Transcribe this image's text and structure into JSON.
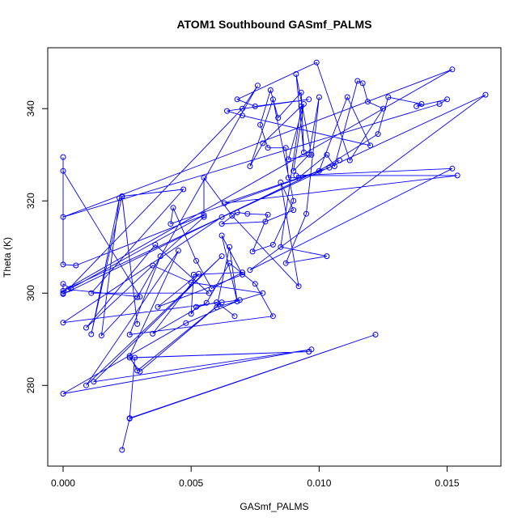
{
  "chart_data": {
    "type": "line",
    "title": "ATOM1 Southbound GASmf_PALMS",
    "xlabel": "GASmf_PALMS",
    "ylabel": "Theta (K)",
    "xlim": [
      -0.0006,
      0.0171
    ],
    "ylim": [
      262.5,
      353.2
    ],
    "xticks": [
      0.0,
      0.005,
      0.01,
      0.015
    ],
    "xtick_labels": [
      "0.000",
      "0.005",
      "0.010",
      "0.015"
    ],
    "yticks": [
      280,
      300,
      320,
      340
    ],
    "ytick_labels": [
      "280",
      "300",
      "320",
      "340"
    ],
    "grid": false,
    "legend": "none",
    "series_color": "#0000ff",
    "marker": "open-circle",
    "series": [
      {
        "points": [
          [
            0.0023,
            266.0
          ],
          [
            0.0026,
            272.8
          ],
          [
            0.0122,
            291.0
          ],
          [
            0.0026,
            272.9
          ],
          [
            0.0028,
            286.0
          ],
          [
            0.0096,
            287.3
          ],
          [
            0.0026,
            286.0
          ],
          [
            0.003,
            283.0
          ],
          [
            0.0062,
            298.0
          ],
          [
            0.0029,
            283.2
          ],
          [
            0.0026,
            286.4
          ],
          [
            0.0045,
            309.2
          ],
          [
            0.0009,
            280.0
          ],
          [
            0.0062,
            308.0
          ],
          [
            0.0012,
            280.8
          ],
          [
            0.0097,
            287.8
          ],
          [
            0.0,
            278.2
          ],
          [
            0.0048,
            293.5
          ],
          [
            0.0069,
            298.5
          ],
          [
            0.0,
            293.6
          ],
          [
            0.0062,
            316.5
          ],
          [
            0.0108,
            328.8
          ],
          [
            0.0,
            299.8
          ],
          [
            0.0,
            300.0
          ],
          [
            0.0,
            302.0
          ],
          [
            0.0003,
            301.0
          ],
          [
            0.0055,
            316.9
          ],
          [
            0.0005,
            306.0
          ],
          [
            0.0,
            306.2
          ],
          [
            0.0,
            329.5
          ],
          [
            0.0,
            326.5
          ],
          [
            0.003,
            299.2
          ],
          [
            0.0002,
            300.8
          ],
          [
            0.007,
            340.0
          ],
          [
            0.0076,
            345.0
          ],
          [
            0.0029,
            299.1
          ],
          [
            0.0015,
            290.8
          ],
          [
            0.0022,
            320.6
          ],
          [
            0.0011,
            291.1
          ],
          [
            0.0023,
            320.9
          ],
          [
            0.0029,
            293.3
          ],
          [
            0.0023,
            321.0
          ],
          [
            0.0047,
            322.5
          ],
          [
            0.0011,
            300.0
          ],
          [
            0.0057,
            300.0
          ],
          [
            0.0036,
            310.5
          ],
          [
            0.0009,
            292.5
          ],
          [
            0.0035,
            306.0
          ],
          [
            0.005,
            302.3
          ],
          [
            0.0078,
            300.0
          ],
          [
            0.006,
            296.9
          ],
          [
            0.0065,
            310.0
          ],
          [
            0.0068,
            298.2
          ],
          [
            0.0062,
            312.5
          ],
          [
            0.007,
            304.0
          ],
          [
            0.0037,
            297.0
          ],
          [
            0.0053,
            304.2
          ],
          [
            0.0035,
            291.2
          ],
          [
            0.0056,
            297.9
          ],
          [
            0.0065,
            306.5
          ],
          [
            0.0075,
            302.0
          ],
          [
            0.0082,
            295.0
          ],
          [
            0.0026,
            291.0
          ],
          [
            0.0038,
            308.0
          ],
          [
            0.0055,
            316.5
          ],
          [
            0.0055,
            325.0
          ],
          [
            0.0066,
            316.8
          ],
          [
            0.0092,
            301.5
          ],
          [
            0.0085,
            324.0
          ],
          [
            0.009,
            318.0
          ],
          [
            0.0079,
            315.5
          ],
          [
            0.0062,
            315.0
          ],
          [
            0.0068,
            317.5
          ],
          [
            0.0072,
            317.2
          ],
          [
            0.008,
            317.0
          ],
          [
            0.0074,
            309.0
          ],
          [
            0.0082,
            310.5
          ],
          [
            0.009,
            320.0
          ],
          [
            0.0082,
            342.0
          ],
          [
            0.0073,
            327.5
          ],
          [
            0.0078,
            332.5
          ],
          [
            0.0093,
            340.5
          ],
          [
            0.0085,
            310.0
          ],
          [
            0.0103,
            308.0
          ],
          [
            0.0087,
            306.5
          ],
          [
            0.0095,
            317.2
          ],
          [
            0.01,
            342.5
          ],
          [
            0.0096,
            330.0
          ],
          [
            0.009,
            326.5
          ],
          [
            0.0094,
            341.0
          ],
          [
            0.0088,
            329.0
          ],
          [
            0.0097,
            330.0
          ],
          [
            0.0091,
            347.5
          ],
          [
            0.0094,
            330.5
          ],
          [
            0.0093,
            343.5
          ],
          [
            0.0084,
            338.0
          ],
          [
            0.0081,
            344.0
          ],
          [
            0.0077,
            336.5
          ],
          [
            0.008,
            331.5
          ],
          [
            0.0087,
            331.5
          ],
          [
            0.0088,
            325.0
          ],
          [
            0.0092,
            325.0
          ],
          [
            0.0103,
            330.0
          ],
          [
            0.0106,
            327.5
          ],
          [
            0.0115,
            346.0
          ],
          [
            0.0117,
            345.5
          ],
          [
            0.0119,
            341.5
          ],
          [
            0.0125,
            340.0
          ],
          [
            0.0112,
            328.8
          ],
          [
            0.0099,
            350.0
          ],
          [
            0.0068,
            342.0
          ],
          [
            0.0075,
            340.5
          ],
          [
            0.0096,
            342.0
          ],
          [
            0.0064,
            339.5
          ],
          [
            0.007,
            338.5
          ],
          [
            0.012,
            332.0
          ],
          [
            0.0111,
            342.5
          ],
          [
            0.01,
            326.5
          ],
          [
            0.0123,
            334.5
          ],
          [
            0.0127,
            342.5
          ],
          [
            0.014,
            341.0
          ],
          [
            0.0138,
            340.5
          ],
          [
            0.015,
            342.0
          ],
          [
            0.0147,
            341.0
          ],
          [
            0.0,
            316.5
          ],
          [
            0.0152,
            348.5
          ],
          [
            0.0,
            300.5
          ],
          [
            0.0165,
            343.0
          ],
          [
            0.0073,
            305.0
          ],
          [
            0.0152,
            327.0
          ],
          [
            0.0091,
            325.5
          ],
          [
            0.0154,
            325.5
          ],
          [
            0.0063,
            319.5
          ],
          [
            0.0104,
            327.2
          ],
          [
            0.0042,
            315.0
          ],
          [
            0.0043,
            318.5
          ],
          [
            0.0052,
            307.0
          ],
          [
            0.0058,
            301.0
          ],
          [
            0.007,
            304.5
          ],
          [
            0.0051,
            304.0
          ],
          [
            0.005,
            295.5
          ],
          [
            0.0052,
            297.0
          ],
          [
            0.006,
            298.0
          ],
          [
            0.0067,
            295.0
          ]
        ]
      }
    ]
  }
}
